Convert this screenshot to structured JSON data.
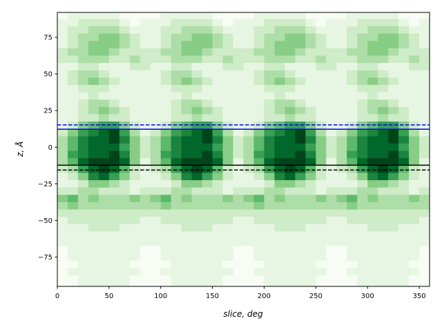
{
  "chart_data": {
    "type": "heatmap",
    "xlabel": "slice, deg",
    "ylabel": "z, Å",
    "xlim": [
      0,
      360
    ],
    "ylim": [
      -95,
      92
    ],
    "xticks": [
      "0",
      "50",
      "100",
      "150",
      "200",
      "250",
      "300",
      "350"
    ],
    "yticks": [
      "-75",
      "-50",
      "-25",
      "0",
      "25",
      "50",
      "75"
    ],
    "colormap": "Greens",
    "x_bin_deg": 10,
    "z_bin_A": 5,
    "z_centers": [
      90,
      85,
      80,
      75,
      70,
      65,
      60,
      55,
      50,
      45,
      40,
      35,
      30,
      25,
      20,
      15,
      10,
      5,
      0,
      -5,
      -10,
      -15,
      -20,
      -25,
      -30,
      -35,
      -40,
      -45,
      -50,
      -55,
      -60,
      -65,
      -70,
      -75,
      -80,
      -85,
      -90
    ],
    "intensity_0_9_rows": [
      "011111000011111000011111000011111000",
      "112222101112222101112222101112222101",
      "122333211122333211122333211122333211",
      "123344321123344321123344321123344321",
      "123444321123444321123444321123444321",
      "233443222233443222233443222233443222",
      "223332232223332232223332232223332232",
      "112211122112211122112211122112211122",
      "123321111123321111123321111123321111",
      "123432111123432111123432111123432111",
      "112221111112221111112221111112221111",
      "111211111111211111111211111111211111",
      "112332111112332111112332111112332111",
      "112343211112343211112343211112343211",
      "112232211112232211112232211112232211",
      "124566421124566421124566421124566421",
      "246789631246789631246789631246789631",
      "357889742357889742357889742357889742",
      "357888642357888642357888642357888642",
      "367889742367889742367889742367889742",
      "358999841358999841358999841358999841",
      "236898521236898521236898521236898521",
      "124786421124786421124786421124786421",
      "112443211112443211112443211112443211",
      "223322212223322212223322212223322212",
      "453433343453433343453433343453433343",
      "343333333343333333343333333343333333",
      "222222222222222222222222222222222222",
      "122222221122222221122222221122222221",
      "111222111111222111111222111111222111",
      "111111111111111111111111111111111111",
      "111111111111111111111111111111111111",
      "011111110011111110011111110011111110",
      "011111110011111110011111110011111110",
      "001111100001111100001111100001111100",
      "011111110011111110011111110011111110",
      "001111100001111100001111100001111100"
    ],
    "hlines": [
      {
        "z": 15.2,
        "color": "#0000ff",
        "style": "dashed"
      },
      {
        "z": 12.3,
        "color": "#0000ff",
        "style": "solid"
      },
      {
        "z": -12.3,
        "color": "#000000",
        "style": "solid"
      },
      {
        "z": -15.6,
        "color": "#000000",
        "style": "dashed"
      }
    ],
    "colors": [
      "#f7fcf5",
      "#e5f5e0",
      "#c7e9c0",
      "#a1d99b",
      "#74c476",
      "#41ab5d",
      "#238b45",
      "#006d2c",
      "#00441b"
    ]
  }
}
